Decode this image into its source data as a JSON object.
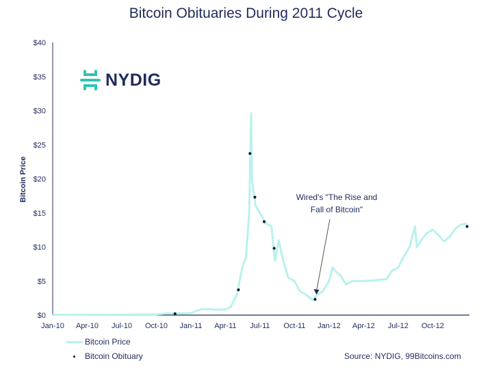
{
  "chart_data": {
    "type": "line",
    "title": "Bitcoin Obituaries During 2011 Cycle",
    "ylabel": "Bitcoin Price",
    "xlabel": "",
    "ylim": [
      0,
      40
    ],
    "xlim": [
      "2010-01-01",
      "2012-12-31"
    ],
    "yticks": [
      "$0",
      "$5",
      "$10",
      "$15",
      "$20",
      "$25",
      "$30",
      "$35",
      "$40"
    ],
    "xticks": [
      "Jan-10",
      "Apr-10",
      "Jul-10",
      "Oct-10",
      "Jan-11",
      "Apr-11",
      "Jul-11",
      "Oct-11",
      "Jan-12",
      "Apr-12",
      "Jul-12",
      "Oct-12"
    ],
    "grid": false,
    "legend_position": "bottom-left",
    "series": [
      {
        "name": "Bitcoin Price",
        "color": "#b8f2ec",
        "points": [
          [
            "2010-01-01",
            0.05
          ],
          [
            "2010-04-01",
            0.05
          ],
          [
            "2010-07-01",
            0.06
          ],
          [
            "2010-08-01",
            0.07
          ],
          [
            "2010-10-01",
            0.1
          ],
          [
            "2010-11-01",
            0.25
          ],
          [
            "2010-12-01",
            0.25
          ],
          [
            "2011-01-01",
            0.3
          ],
          [
            "2011-02-01",
            0.9
          ],
          [
            "2011-03-01",
            0.8
          ],
          [
            "2011-04-01",
            0.8
          ],
          [
            "2011-04-15",
            1.2
          ],
          [
            "2011-05-01",
            3.0
          ],
          [
            "2011-05-15",
            7.0
          ],
          [
            "2011-05-25",
            8.5
          ],
          [
            "2011-06-03",
            15
          ],
          [
            "2011-06-08",
            29.6
          ],
          [
            "2011-06-10",
            20
          ],
          [
            "2011-06-15",
            18
          ],
          [
            "2011-06-20",
            16
          ],
          [
            "2011-07-01",
            15
          ],
          [
            "2011-07-15",
            13.5
          ],
          [
            "2011-08-01",
            13
          ],
          [
            "2011-08-10",
            8
          ],
          [
            "2011-08-20",
            11
          ],
          [
            "2011-09-01",
            8
          ],
          [
            "2011-09-15",
            5.5
          ],
          [
            "2011-10-01",
            5
          ],
          [
            "2011-10-15",
            3.5
          ],
          [
            "2011-11-01",
            3
          ],
          [
            "2011-11-18",
            2.2
          ],
          [
            "2011-12-01",
            3
          ],
          [
            "2011-12-15",
            3.5
          ],
          [
            "2012-01-01",
            5
          ],
          [
            "2012-01-10",
            7
          ],
          [
            "2012-01-20",
            6.3
          ],
          [
            "2012-02-01",
            5.8
          ],
          [
            "2012-02-15",
            4.5
          ],
          [
            "2012-03-01",
            5
          ],
          [
            "2012-04-01",
            5
          ],
          [
            "2012-05-01",
            5.1
          ],
          [
            "2012-06-01",
            5.3
          ],
          [
            "2012-06-15",
            6.5
          ],
          [
            "2012-07-01",
            7
          ],
          [
            "2012-07-15",
            8.5
          ],
          [
            "2012-08-01",
            10
          ],
          [
            "2012-08-15",
            13
          ],
          [
            "2012-08-20",
            10
          ],
          [
            "2012-09-01",
            11
          ],
          [
            "2012-09-15",
            12
          ],
          [
            "2012-10-01",
            12.5
          ],
          [
            "2012-10-15",
            11.8
          ],
          [
            "2012-11-01",
            10.8
          ],
          [
            "2012-11-15",
            11.5
          ],
          [
            "2012-12-01",
            12.7
          ],
          [
            "2012-12-15",
            13.3
          ],
          [
            "2012-12-31",
            13.4
          ]
        ]
      },
      {
        "name": "Bitcoin Obituary",
        "color": "#0d1633",
        "type": "scatter",
        "points": [
          [
            "2010-11-20",
            0.2
          ],
          [
            "2011-05-05",
            3.7
          ],
          [
            "2011-06-05",
            23.7
          ],
          [
            "2011-06-18",
            17.3
          ],
          [
            "2011-07-12",
            13.7
          ],
          [
            "2011-08-08",
            9.8
          ],
          [
            "2011-11-25",
            2.3
          ],
          [
            "2012-12-31",
            13.0
          ]
        ]
      }
    ],
    "annotations": [
      {
        "text_line1": "Wired's \"The Rise and",
        "text_line2": "Fall of Bitcoin\"",
        "target": [
          "2011-11-25",
          2.3
        ]
      }
    ]
  },
  "logo": {
    "text": "NYDIG",
    "color": "#2ec4b0"
  },
  "source": "Source: NYDIG, 99Bitcoins.com"
}
